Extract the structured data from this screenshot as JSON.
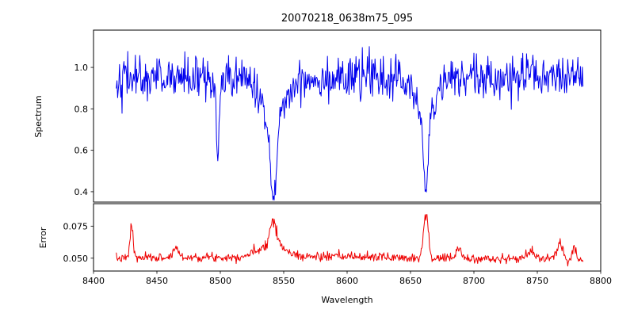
{
  "figure": {
    "background": "#ffffff"
  },
  "chart_data": [
    {
      "type": "line",
      "name": "spectrum",
      "title": "20070218_0638m75_095",
      "xlabel": "Wavelength",
      "ylabel": "Spectrum",
      "color": "#0000ee",
      "xlim": [
        8400,
        8800
      ],
      "ylim": [
        0.35,
        1.18
      ],
      "xticks": [
        8400,
        8450,
        8500,
        8550,
        8600,
        8650,
        8700,
        8750,
        8800
      ],
      "yticks": [
        0.4,
        0.6,
        0.8,
        1.0
      ],
      "ytick_decimals": 1,
      "x_start": 8418,
      "x_end": 8786,
      "x_step": 0.5,
      "continuum_level": 0.95,
      "noise_sigma": 0.055,
      "absorption_lines": [
        {
          "center": 8498,
          "core_depth": 0.37,
          "core_sigma": 1.0,
          "wing_depth": 0.05,
          "wing_sigma": 4
        },
        {
          "center": 8542,
          "core_depth": 0.38,
          "core_sigma": 2.2,
          "wing_depth": 0.21,
          "wing_sigma": 9
        },
        {
          "center": 8662,
          "core_depth": 0.36,
          "core_sigma": 2.0,
          "wing_depth": 0.17,
          "wing_sigma": 8
        }
      ],
      "seed": 42
    },
    {
      "type": "line",
      "name": "error",
      "ylabel": "Error",
      "color": "#ee0000",
      "xlim": [
        8400,
        8800
      ],
      "ylim": [
        0.04,
        0.0925
      ],
      "yticks": [
        0.05,
        0.075
      ],
      "ytick_decimals": 3,
      "x_start": 8418,
      "x_end": 8786,
      "x_step": 0.5,
      "baseline": 0.0485,
      "baseline_wiggle": 0.0012,
      "noise_sigma": 0.0016,
      "peaks": [
        {
          "center": 8430,
          "height": 0.026,
          "sigma": 1.2
        },
        {
          "center": 8465,
          "height": 0.008,
          "sigma": 2.0
        },
        {
          "center": 8540,
          "height": 0.01,
          "sigma": 10
        },
        {
          "center": 8542,
          "height": 0.02,
          "sigma": 2.5
        },
        {
          "center": 8610,
          "height": 0.004,
          "sigma": 60
        },
        {
          "center": 8662,
          "height": 0.036,
          "sigma": 1.8
        },
        {
          "center": 8688,
          "height": 0.008,
          "sigma": 2.0
        },
        {
          "center": 8745,
          "height": 0.005,
          "sigma": 4.0
        },
        {
          "center": 8768,
          "height": 0.012,
          "sigma": 2.5
        },
        {
          "center": 8779,
          "height": 0.009,
          "sigma": 1.5
        }
      ],
      "seed": 7
    }
  ]
}
